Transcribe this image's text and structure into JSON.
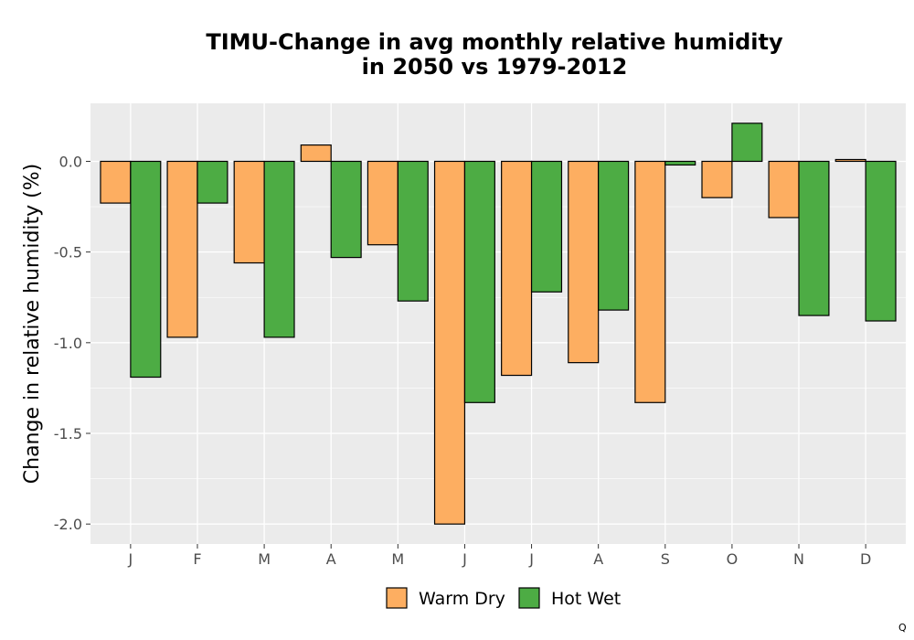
{
  "chart_data": {
    "type": "bar",
    "title_line1": "TIMU-Change in avg monthly relative humidity",
    "title_line2": "in 2050 vs 1979-2012",
    "xlabel": "",
    "ylabel": "Change in relative humidity (%)",
    "categories": [
      "J",
      "F",
      "M",
      "A",
      "M",
      "J",
      "J",
      "A",
      "S",
      "O",
      "N",
      "D"
    ],
    "series": [
      {
        "name": "Warm Dry",
        "color": "#FDAE61",
        "values": [
          -0.23,
          -0.97,
          -0.56,
          0.09,
          -0.46,
          -2.0,
          -1.18,
          -1.11,
          -1.33,
          -0.2,
          -0.31,
          0.01
        ]
      },
      {
        "name": "Hot Wet",
        "color": "#4DAC44",
        "values": [
          -1.19,
          -0.23,
          -0.97,
          -0.53,
          -0.77,
          -1.33,
          -0.72,
          -0.82,
          -0.02,
          0.21,
          -0.85,
          -0.88
        ]
      }
    ],
    "ylim": [
      -2.11,
      0.32
    ],
    "yticks": [
      "0.0",
      "-0.5",
      "-1.0",
      "-1.5",
      "-2.0"
    ],
    "ytick_values": [
      0.0,
      -0.5,
      -1.0,
      -1.5,
      -2.0
    ],
    "grid": true,
    "legend_position": "bottom",
    "panel_color": "#EBEBEB",
    "corner_mark": "Q"
  }
}
